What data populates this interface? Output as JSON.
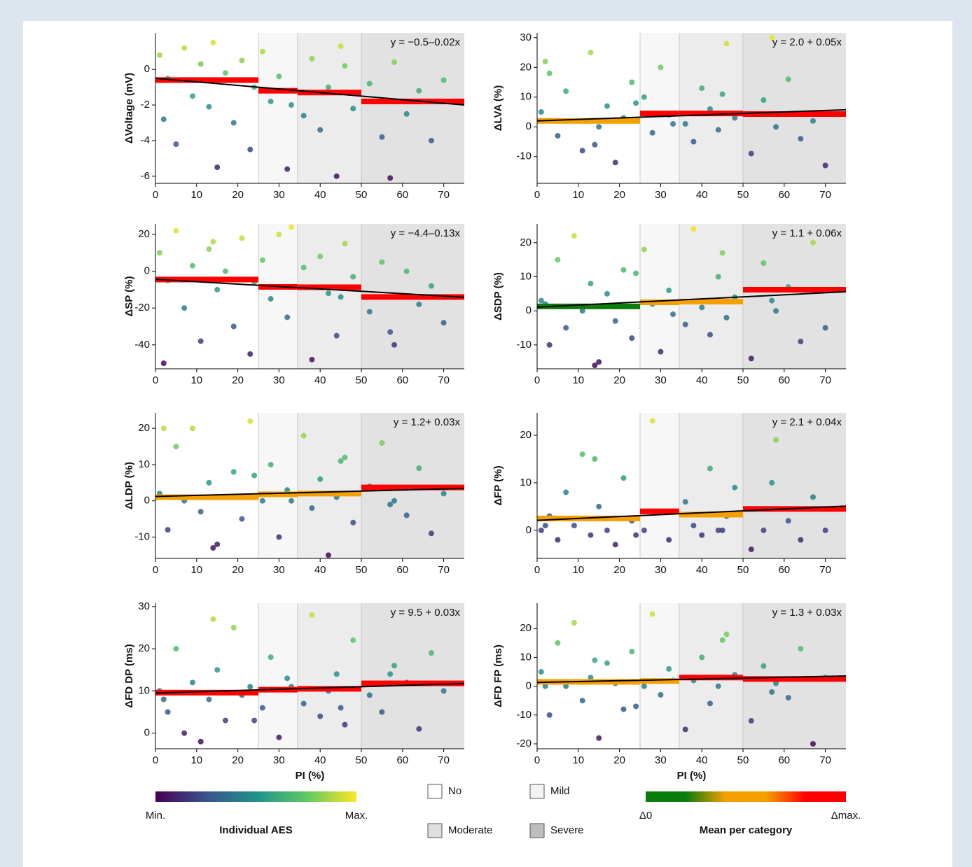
{
  "severity": {
    "names": [
      "No",
      "Mild",
      "Moderate",
      "Severe"
    ],
    "bounds": [
      25,
      34.5,
      50
    ],
    "colors": [
      "#ffffff",
      "#f7f7f7",
      "#ececec",
      "#e2e2e2"
    ],
    "legend_colors": [
      "#ffffff",
      "#f3f3f3",
      "#dedede",
      "#bdbdbd"
    ]
  },
  "aes_colorbar": {
    "title": "Individual AES",
    "min_label": "Min.",
    "max_label": "Max.",
    "colors": [
      "#440154",
      "#3b528b",
      "#21918c",
      "#5ec962",
      "#fde725"
    ]
  },
  "mean_colorbar": {
    "title": "Mean per category",
    "min_label": "Δ0",
    "max_label": "Δmax.",
    "colors": [
      "#0a7d0a",
      "#0a7d0a",
      "#f5a000",
      "#f5a000",
      "#ff0000",
      "#ff0000"
    ]
  },
  "chart_data": [
    {
      "type": "scatter",
      "y_label": "ΔVoltage (mV)",
      "annotation": "y = −0.5–0.02x",
      "fit": {
        "intercept": -0.5,
        "slope": -0.02,
        "color": "#000000"
      },
      "xlim": [
        0,
        75
      ],
      "xticks": [
        0,
        10,
        20,
        30,
        40,
        50,
        60,
        70
      ],
      "ylim": [
        -6.4,
        2.05
      ],
      "yticks": [
        -6,
        -4,
        -2,
        0
      ],
      "x": [
        1,
        3,
        5,
        7,
        9,
        11,
        13,
        15,
        17,
        19,
        21,
        23,
        26,
        28,
        30,
        32,
        36,
        38,
        40,
        42,
        44,
        46,
        48,
        52,
        55,
        58,
        61,
        64,
        67,
        70,
        2,
        14,
        24,
        33,
        45,
        57
      ],
      "y": [
        0.8,
        -0.5,
        -4.2,
        1.2,
        -1.5,
        0.3,
        -2.1,
        -5.5,
        -0.2,
        -3.0,
        0.5,
        -4.5,
        1.0,
        -1.8,
        -0.4,
        -5.6,
        -2.6,
        0.6,
        -3.4,
        -1.0,
        -6.0,
        0.2,
        -2.2,
        -0.8,
        -3.8,
        0.4,
        -2.5,
        -1.2,
        -4.0,
        -0.6,
        -2.8,
        1.5,
        -1.0,
        -2.0,
        1.3,
        -6.1
      ],
      "means": [
        -0.6,
        -1.2,
        -1.3,
        -1.8
      ],
      "mean_colors": [
        "#ff0000",
        "#ff0000",
        "#ff0000",
        "#ff0000"
      ]
    },
    {
      "type": "scatter",
      "y_label": "ΔLVA (%)",
      "annotation": "y = 2.0 + 0.05x",
      "fit": {
        "intercept": 2.0,
        "slope": 0.05,
        "color": "#000000"
      },
      "xlim": [
        0,
        75
      ],
      "xticks": [
        0,
        10,
        20,
        30,
        40,
        50,
        60,
        70
      ],
      "ylim": [
        -19,
        31.6
      ],
      "yticks": [
        -10,
        0,
        10,
        20,
        30
      ],
      "x": [
        1,
        3,
        5,
        7,
        9,
        11,
        13,
        15,
        17,
        19,
        21,
        23,
        26,
        28,
        30,
        32,
        36,
        38,
        40,
        42,
        44,
        46,
        48,
        52,
        55,
        58,
        61,
        64,
        67,
        70,
        2,
        14,
        24,
        33,
        45,
        57
      ],
      "y": [
        5,
        18,
        -3,
        12,
        2,
        -8,
        25,
        0,
        7,
        -12,
        3,
        15,
        10,
        -2,
        20,
        4,
        1,
        -5,
        13,
        6,
        -1,
        28,
        3,
        -9,
        9,
        0,
        16,
        -4,
        2,
        -13,
        22,
        -6,
        8,
        1,
        11,
        30
      ],
      "means": [
        2,
        4.5,
        4.5,
        4.3
      ],
      "mean_colors": [
        "#f5a000",
        "#ff0000",
        "#ff0000",
        "#ff0000"
      ]
    },
    {
      "type": "scatter",
      "y_label": "ΔSP (%)",
      "annotation": "y = −4.4–0.13x",
      "fit": {
        "intercept": -4.4,
        "slope": -0.13,
        "color": "#000000"
      },
      "xlim": [
        0,
        75
      ],
      "xticks": [
        0,
        10,
        20,
        30,
        40,
        50,
        60,
        70
      ],
      "ylim": [
        -53,
        25.7
      ],
      "yticks": [
        -40,
        -20,
        0,
        20
      ],
      "x": [
        1,
        3,
        5,
        7,
        9,
        11,
        13,
        15,
        17,
        19,
        21,
        23,
        26,
        28,
        30,
        32,
        36,
        38,
        40,
        42,
        44,
        46,
        48,
        52,
        55,
        58,
        61,
        64,
        67,
        70,
        2,
        14,
        24,
        33,
        45,
        57
      ],
      "y": [
        10,
        -5,
        22,
        -20,
        3,
        -38,
        12,
        -10,
        0,
        -30,
        18,
        -45,
        6,
        -15,
        20,
        -25,
        2,
        -48,
        8,
        -12,
        -35,
        15,
        -3,
        -22,
        5,
        -40,
        0,
        -18,
        -8,
        -28,
        -50,
        16,
        -6,
        24,
        -14,
        -33
      ],
      "means": [
        -4.5,
        -8.5,
        -8.7,
        -14
      ],
      "mean_colors": [
        "#ff0000",
        "#ff0000",
        "#ff0000",
        "#ff0000"
      ]
    },
    {
      "type": "scatter",
      "y_label": "ΔSDP (%)",
      "annotation": "y = 1.1 + 0.06x",
      "fit": {
        "intercept": 1.1,
        "slope": 0.06,
        "color": "#000000"
      },
      "xlim": [
        0,
        75
      ],
      "xticks": [
        0,
        10,
        20,
        30,
        40,
        50,
        60,
        70
      ],
      "ylim": [
        -17,
        25.5
      ],
      "yticks": [
        -10,
        0,
        10,
        20
      ],
      "x": [
        1,
        3,
        5,
        7,
        9,
        11,
        13,
        15,
        17,
        19,
        21,
        23,
        26,
        28,
        30,
        32,
        36,
        38,
        40,
        42,
        44,
        46,
        48,
        52,
        55,
        58,
        61,
        64,
        67,
        70,
        2,
        14,
        24,
        33,
        45,
        57
      ],
      "y": [
        3,
        -10,
        15,
        -5,
        22,
        0,
        8,
        -15,
        5,
        -3,
        12,
        -8,
        18,
        2,
        -12,
        6,
        -4,
        24,
        1,
        -7,
        10,
        -2,
        4,
        -14,
        14,
        0,
        7,
        -9,
        20,
        -5,
        2,
        -16,
        11,
        -1,
        17,
        3
      ],
      "means": [
        1.3,
        2.5,
        2.7,
        6.2
      ],
      "mean_colors": [
        "#0a7d0a",
        "#f5a000",
        "#f5a000",
        "#ff0000"
      ]
    },
    {
      "type": "scatter",
      "y_label": "ΔLDP (%)",
      "annotation": "y = 1.2+ 0.03x",
      "fit": {
        "intercept": 1.2,
        "slope": 0.03,
        "color": "#000000"
      },
      "xlim": [
        0,
        75
      ],
      "xticks": [
        0,
        10,
        20,
        30,
        40,
        50,
        60,
        70
      ],
      "ylim": [
        -15.9,
        24.3
      ],
      "yticks": [
        -10,
        0,
        10,
        20
      ],
      "x": [
        1,
        3,
        5,
        7,
        9,
        11,
        13,
        15,
        17,
        19,
        21,
        23,
        26,
        28,
        30,
        32,
        36,
        38,
        40,
        42,
        44,
        46,
        48,
        52,
        55,
        58,
        61,
        64,
        67,
        70,
        2,
        14,
        24,
        33,
        45,
        57
      ],
      "y": [
        2,
        -8,
        15,
        0,
        20,
        -3,
        5,
        -12,
        1,
        8,
        -5,
        22,
        0,
        10,
        -10,
        3,
        18,
        -2,
        6,
        -15,
        1,
        12,
        -6,
        4,
        16,
        0,
        -4,
        9,
        -9,
        2,
        20,
        -13,
        7,
        0,
        11,
        -1
      ],
      "means": [
        1,
        1.8,
        2,
        3.7
      ],
      "mean_colors": [
        "#f5a000",
        "#f5a000",
        "#f5a000",
        "#ff0000"
      ]
    },
    {
      "type": "scatter",
      "y_label": "ΔFP (%)",
      "annotation": "y = 2.1 + 0.04x",
      "fit": {
        "intercept": 2.1,
        "slope": 0.04,
        "color": "#000000"
      },
      "xlim": [
        0,
        75
      ],
      "xticks": [
        0,
        10,
        20,
        30,
        40,
        50,
        60,
        70
      ],
      "ylim": [
        -5.9,
        24.7
      ],
      "yticks": [
        0,
        10,
        20
      ],
      "x": [
        1,
        3,
        5,
        7,
        9,
        11,
        13,
        15,
        17,
        19,
        21,
        23,
        26,
        28,
        30,
        32,
        36,
        38,
        40,
        42,
        44,
        46,
        48,
        52,
        55,
        58,
        61,
        64,
        67,
        70,
        2,
        14,
        24,
        33,
        45,
        57
      ],
      "y": [
        0,
        3,
        -2,
        8,
        1,
        16,
        -1,
        5,
        0,
        -3,
        11,
        2,
        0,
        23,
        4,
        -2,
        6,
        1,
        -1,
        13,
        0,
        3,
        9,
        -4,
        0,
        19,
        2,
        -2,
        7,
        0,
        1,
        15,
        -1,
        4,
        0,
        10
      ],
      "means": [
        2.5,
        4,
        3.3,
        4.5
      ],
      "mean_colors": [
        "#f5a000",
        "#ff0000",
        "#f5a000",
        "#ff0000"
      ]
    },
    {
      "type": "scatter",
      "y_label": "ΔFD DP (ms)",
      "x_label": "PI (%)",
      "annotation": "y = 9.5 + 0.03x",
      "fit": {
        "intercept": 9.5,
        "slope": 0.03,
        "color": "#000000"
      },
      "xlim": [
        0,
        75
      ],
      "xticks": [
        0,
        10,
        20,
        30,
        40,
        50,
        60,
        70
      ],
      "ylim": [
        -3.7,
        30.8
      ],
      "yticks": [
        0,
        10,
        20,
        30
      ],
      "x": [
        1,
        3,
        5,
        7,
        9,
        11,
        13,
        15,
        17,
        19,
        21,
        23,
        26,
        28,
        30,
        32,
        36,
        38,
        40,
        42,
        44,
        46,
        48,
        52,
        55,
        58,
        61,
        64,
        67,
        70,
        2,
        14,
        24,
        33,
        45,
        57
      ],
      "y": [
        10,
        5,
        20,
        0,
        12,
        -2,
        8,
        15,
        3,
        25,
        9,
        11,
        6,
        18,
        -1,
        13,
        7,
        28,
        4,
        10,
        14,
        2,
        22,
        9,
        5,
        16,
        12,
        1,
        19,
        10,
        8,
        27,
        3,
        11,
        6,
        14
      ],
      "means": [
        9.6,
        10.3,
        10.5,
        11.8
      ],
      "mean_colors": [
        "#ff0000",
        "#ff0000",
        "#ff0000",
        "#ff0000"
      ]
    },
    {
      "type": "scatter",
      "y_label": "ΔFD FP (ms)",
      "x_label": "PI (%)",
      "annotation": "y = 1.3 + 0.03x",
      "fit": {
        "intercept": 1.3,
        "slope": 0.03,
        "color": "#000000"
      },
      "xlim": [
        0,
        75
      ],
      "xticks": [
        0,
        10,
        20,
        30,
        40,
        50,
        60,
        70
      ],
      "ylim": [
        -21.7,
        28.8
      ],
      "yticks": [
        -20,
        -10,
        0,
        10,
        20
      ],
      "x": [
        1,
        3,
        5,
        7,
        9,
        11,
        13,
        15,
        17,
        19,
        21,
        23,
        26,
        28,
        30,
        32,
        36,
        38,
        40,
        42,
        44,
        46,
        48,
        52,
        55,
        58,
        61,
        64,
        67,
        70,
        2,
        14,
        24,
        33,
        45,
        57
      ],
      "y": [
        5,
        -10,
        15,
        0,
        22,
        -5,
        3,
        -18,
        8,
        1,
        -8,
        12,
        0,
        25,
        -3,
        6,
        -15,
        2,
        10,
        -6,
        0,
        18,
        4,
        -12,
        7,
        1,
        -4,
        13,
        -20,
        3,
        0,
        9,
        -7,
        2,
        16,
        -2
      ],
      "means": [
        1.5,
        1.8,
        3,
        2.5
      ],
      "mean_colors": [
        "#f5a000",
        "#f5a000",
        "#ff0000",
        "#ff0000"
      ]
    }
  ]
}
